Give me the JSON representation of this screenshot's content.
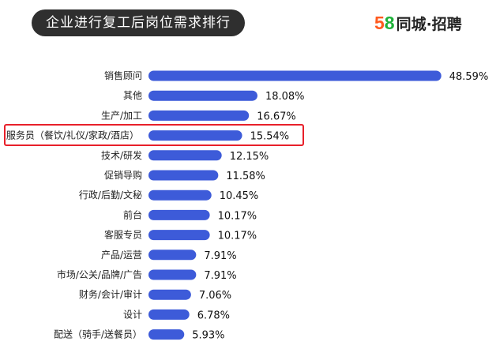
{
  "header": {
    "title": "企业进行复工后岗位需求排行",
    "brand_digit_1": "5",
    "brand_digit_2": "8",
    "brand_text": "同城·招聘"
  },
  "colors": {
    "bar": "#3d5bd9",
    "highlight": "#e8202a",
    "title_bg": "#2f2f2f"
  },
  "chart_data": {
    "type": "bar",
    "orientation": "horizontal",
    "categories": [
      "销售顾问",
      "其他",
      "生产/加工",
      "服务员（餐饮/礼仪/家政/酒店）",
      "技术/研发",
      "促销导购",
      "行政/后勤/文秘",
      "前台",
      "客服专员",
      "产品/运营",
      "市场/公关/品牌/广告",
      "财务/会计/审计",
      "设计",
      "配送（骑手/送餐员）"
    ],
    "values": [
      48.59,
      18.08,
      16.67,
      15.54,
      12.15,
      11.58,
      10.45,
      10.17,
      10.17,
      7.91,
      7.91,
      7.06,
      6.78,
      5.93
    ],
    "value_labels": [
      "48.59%",
      "18.08%",
      "16.67%",
      "15.54%",
      "12.15%",
      "11.58%",
      "10.45%",
      "10.17%",
      "10.17%",
      "7.91%",
      "7.91%",
      "7.06%",
      "6.78%",
      "5.93%"
    ],
    "highlighted_category": "服务员（餐饮/礼仪/家政/酒店）",
    "xlim": [
      0,
      50
    ]
  }
}
